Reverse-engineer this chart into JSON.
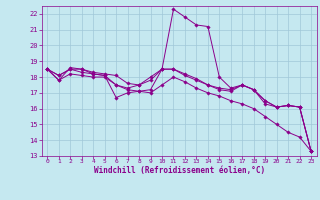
{
  "xlabel": "Windchill (Refroidissement éolien,°C)",
  "xlim": [
    -0.5,
    23.5
  ],
  "ylim": [
    13,
    22.5
  ],
  "yticks": [
    13,
    14,
    15,
    16,
    17,
    18,
    19,
    20,
    21,
    22
  ],
  "xticks": [
    0,
    1,
    2,
    3,
    4,
    5,
    6,
    7,
    8,
    9,
    10,
    11,
    12,
    13,
    14,
    15,
    16,
    17,
    18,
    19,
    20,
    21,
    22,
    23
  ],
  "bg_color": "#c5e8f0",
  "line_color": "#8b008b",
  "grid_color": "#a0c8d8",
  "lines": [
    {
      "x": [
        0,
        1,
        2,
        3,
        4,
        5,
        6,
        7,
        8,
        9,
        10,
        11,
        12,
        13,
        14,
        15,
        16,
        17,
        18,
        19,
        20,
        21,
        22,
        23
      ],
      "y": [
        18.5,
        17.8,
        18.6,
        18.5,
        18.2,
        18.1,
        16.7,
        17.0,
        17.1,
        17.2,
        18.5,
        22.3,
        21.8,
        21.3,
        21.2,
        18.0,
        17.3,
        17.5,
        17.2,
        16.3,
        16.1,
        16.2,
        16.1,
        13.3
      ]
    },
    {
      "x": [
        0,
        1,
        2,
        3,
        4,
        5,
        6,
        7,
        8,
        9,
        10,
        11,
        12,
        13,
        14,
        15,
        16,
        17,
        18,
        19,
        20,
        21,
        22,
        23
      ],
      "y": [
        18.5,
        18.1,
        18.5,
        18.3,
        18.2,
        18.1,
        17.5,
        17.3,
        17.5,
        17.8,
        18.5,
        18.5,
        18.1,
        17.8,
        17.5,
        17.2,
        17.1,
        17.5,
        17.2,
        16.5,
        16.1,
        16.2,
        16.1,
        13.3
      ]
    },
    {
      "x": [
        0,
        1,
        2,
        3,
        4,
        5,
        6,
        7,
        8,
        9,
        10,
        11,
        12,
        13,
        14,
        15,
        16,
        17,
        18,
        19,
        20,
        21,
        22,
        23
      ],
      "y": [
        18.5,
        18.1,
        18.5,
        18.5,
        18.3,
        18.2,
        18.1,
        17.6,
        17.5,
        18.0,
        18.5,
        18.5,
        18.2,
        17.9,
        17.5,
        17.3,
        17.2,
        17.5,
        17.2,
        16.5,
        16.1,
        16.2,
        16.1,
        13.3
      ]
    },
    {
      "x": [
        0,
        1,
        2,
        3,
        4,
        5,
        6,
        7,
        8,
        9,
        10,
        11,
        12,
        13,
        14,
        15,
        16,
        17,
        18,
        19,
        20,
        21,
        22,
        23
      ],
      "y": [
        18.5,
        17.8,
        18.2,
        18.1,
        18.0,
        18.0,
        17.5,
        17.2,
        17.1,
        17.0,
        17.5,
        18.0,
        17.7,
        17.3,
        17.0,
        16.8,
        16.5,
        16.3,
        16.0,
        15.5,
        15.0,
        14.5,
        14.2,
        13.3
      ]
    }
  ]
}
